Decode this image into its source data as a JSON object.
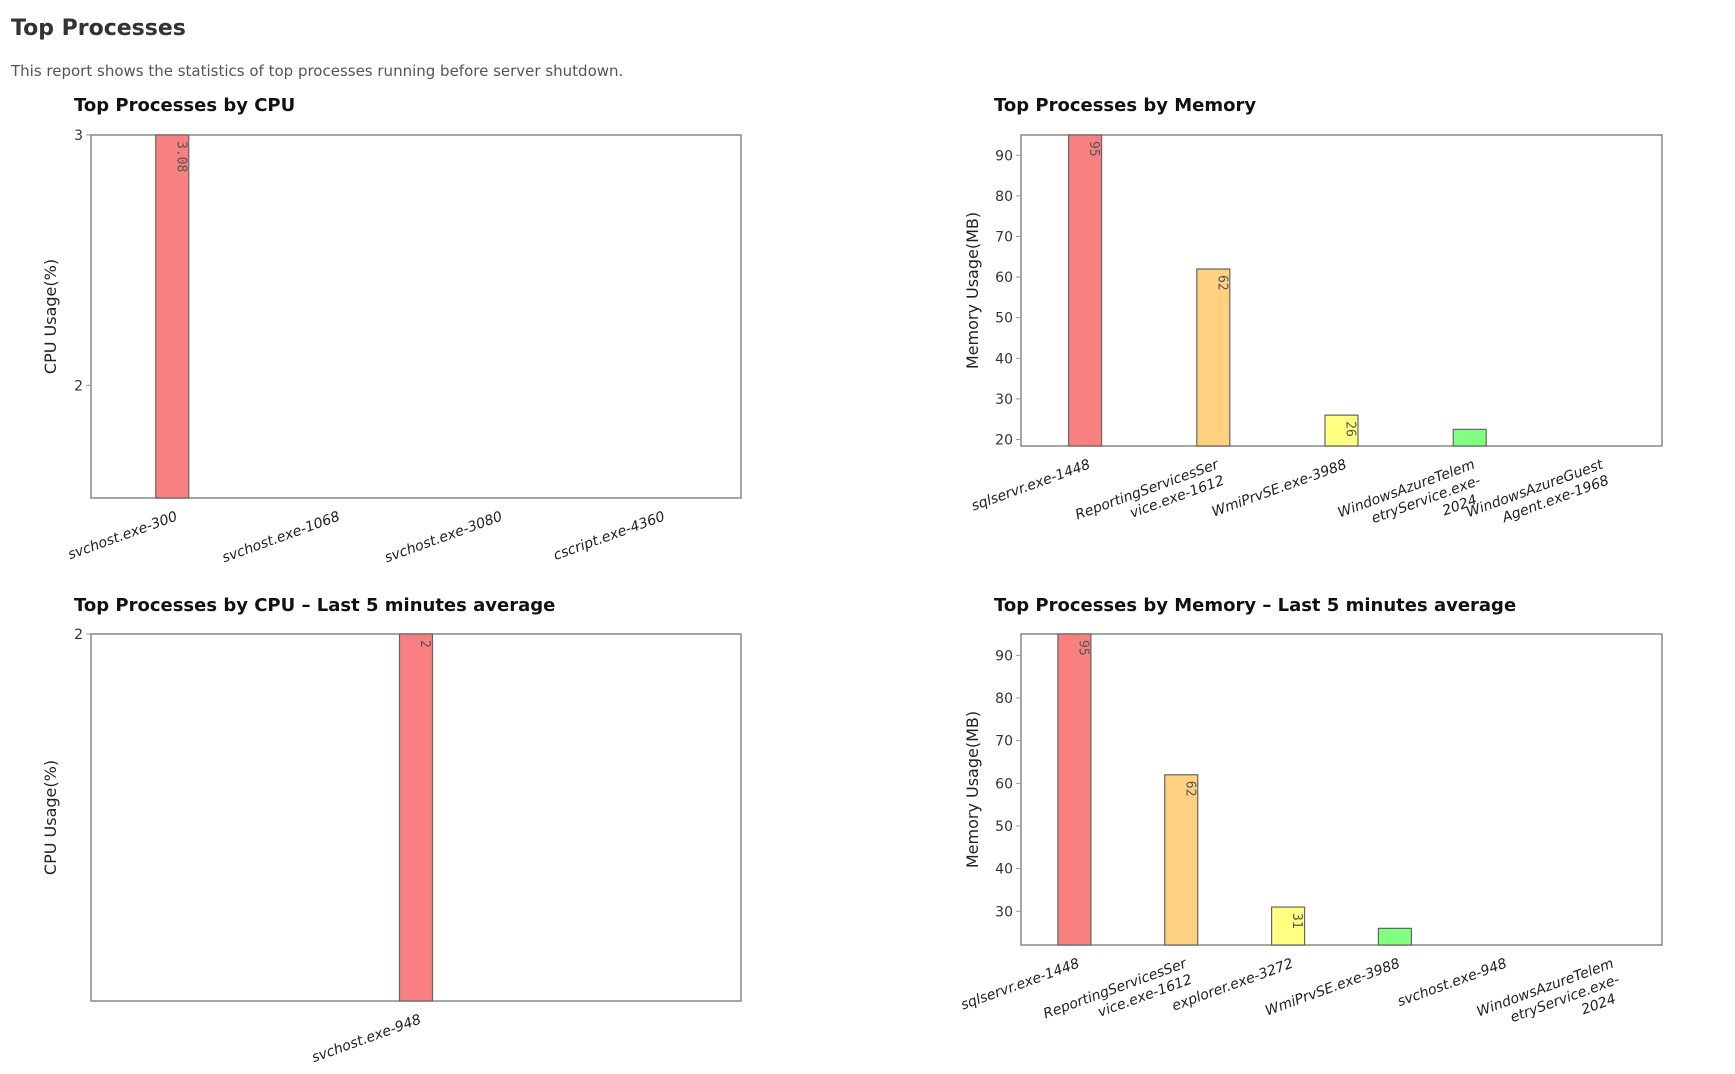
{
  "page": {
    "title": "Top Processes",
    "description": "This report shows the statistics of top processes running before server shutdown."
  },
  "colors": {
    "red": "#f88080",
    "orange": "#fdd17f",
    "yellow": "#ffff80",
    "green": "#80ff80",
    "border": "#888888"
  },
  "chart_data": [
    {
      "type": "bar",
      "title": "Top Processes by CPU",
      "ylabel": "CPU Usage(%)",
      "xlabel": "",
      "ylim": [
        1.55,
        3
      ],
      "yticks": [
        2,
        3
      ],
      "grid": false,
      "categories": [
        [
          "svchost.exe-300"
        ],
        [
          "svchost.exe-1068"
        ],
        [
          "svchost.exe-3080"
        ],
        [
          "cscript.exe-4360"
        ]
      ],
      "values": [
        3.08,
        null,
        null,
        null
      ],
      "value_labels": [
        "3.08",
        "",
        "",
        ""
      ],
      "bar_colors": [
        "#f88080",
        "#fdd17f",
        "#ffff80",
        "#80ff80"
      ]
    },
    {
      "type": "bar",
      "title": "Top Processes by Memory",
      "ylabel": "Memory Usage(MB)",
      "xlabel": "",
      "ylim": [
        18.4,
        95
      ],
      "yticks": [
        20,
        30,
        40,
        50,
        60,
        70,
        80,
        90
      ],
      "grid": false,
      "categories": [
        [
          "sqlservr.exe-1448"
        ],
        [
          "ReportingServicesSer",
          "vice.exe-1612"
        ],
        [
          "WmiPrvSE.exe-3988"
        ],
        [
          "WindowsAzureTelem",
          "etryService.exe-",
          "2024"
        ],
        [
          "WindowsAzureGuest",
          "Agent.exe-1968"
        ]
      ],
      "values": [
        95,
        62,
        26,
        22.5,
        null
      ],
      "value_labels": [
        "95",
        "62",
        "26",
        "",
        ""
      ],
      "bar_colors": [
        "#f88080",
        "#fdd17f",
        "#ffff80",
        "#80ff80",
        "#80c0ff"
      ]
    },
    {
      "type": "bar",
      "title": "Top Processes by CPU – Last 5 minutes average",
      "ylabel": "CPU Usage(%)",
      "xlabel": "",
      "ylim": [
        0,
        2
      ],
      "yticks": [
        2
      ],
      "grid": false,
      "categories": [
        [
          "svchost.exe-948"
        ]
      ],
      "values": [
        2
      ],
      "value_labels": [
        "2"
      ],
      "bar_colors": [
        "#f88080"
      ]
    },
    {
      "type": "bar",
      "title": "Top Processes by Memory – Last 5 minutes average",
      "ylabel": "Memory Usage(MB)",
      "xlabel": "",
      "ylim": [
        22.1,
        95
      ],
      "yticks": [
        30,
        40,
        50,
        60,
        70,
        80,
        90
      ],
      "grid": false,
      "categories": [
        [
          "sqlservr.exe-1448"
        ],
        [
          "ReportingServicesSer",
          "vice.exe-1612"
        ],
        [
          "explorer.exe-3272"
        ],
        [
          "WmiPrvSE.exe-3988"
        ],
        [
          "svchost.exe-948"
        ],
        [
          "WindowsAzureTelem",
          "etryService.exe-",
          "2024"
        ]
      ],
      "values": [
        95,
        62,
        31,
        26,
        null,
        null
      ],
      "value_labels": [
        "95",
        "62",
        "31",
        "",
        "",
        ""
      ],
      "bar_colors": [
        "#f88080",
        "#fdd17f",
        "#ffff80",
        "#80ff80",
        "#80c0ff",
        "#c080ff"
      ]
    }
  ]
}
